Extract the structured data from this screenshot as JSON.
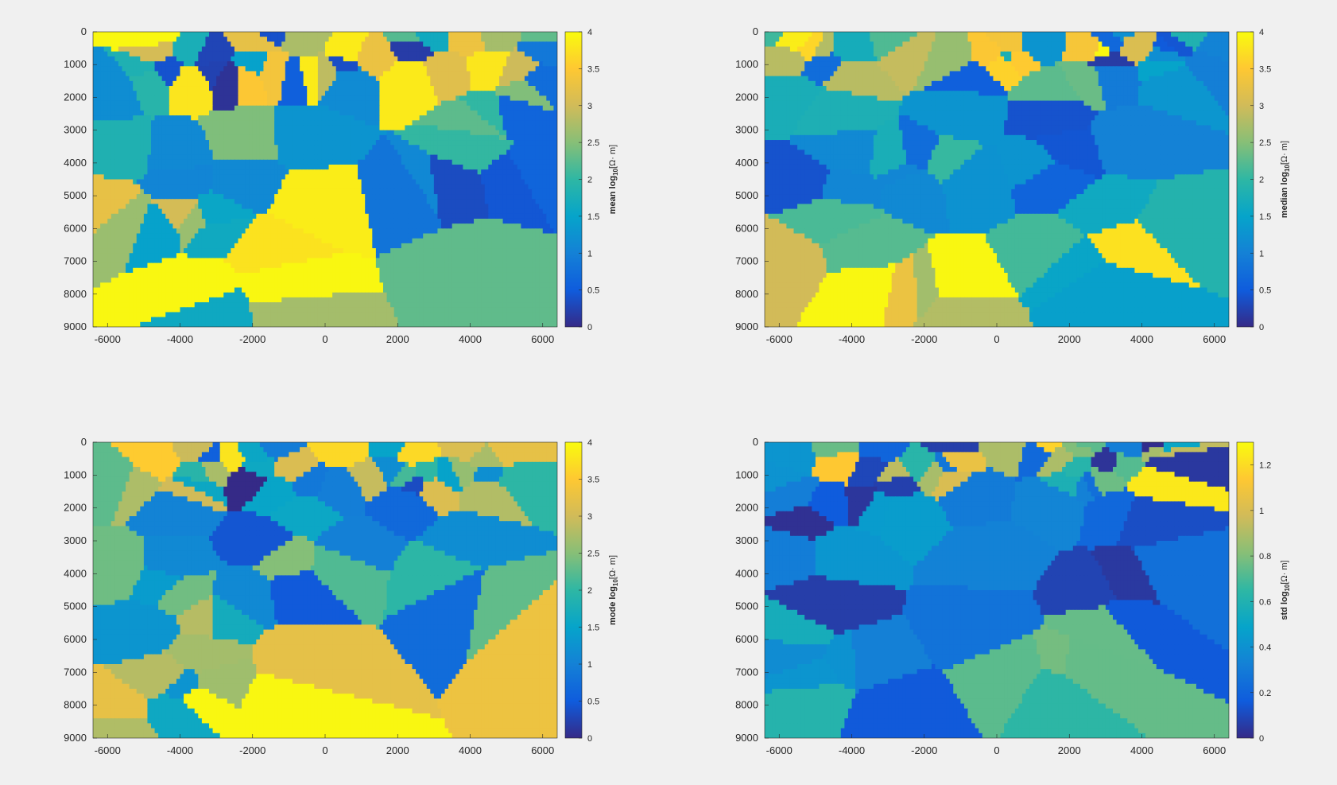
{
  "colors": {
    "background": "#f0f0f0",
    "parula": [
      "#352a87",
      "#0f5cdd",
      "#1481d6",
      "#06a4ca",
      "#2eb7a4",
      "#87bf77",
      "#d1bb59",
      "#fec832",
      "#f9fb0e"
    ]
  },
  "chart_data": [
    {
      "type": "heatmap",
      "title": "",
      "xlabel": "",
      "ylabel": "",
      "colorbar_label": "mean log",
      "colorbar_sub": "10",
      "colorbar_unit": "[Ω· m]",
      "xlim": [
        -6400,
        6400
      ],
      "ylim": [
        0,
        9000
      ],
      "y_reversed": true,
      "xticks": [
        -6000,
        -4000,
        -2000,
        0,
        2000,
        4000,
        6000
      ],
      "xtick_labels": [
        "-6000",
        "-4000",
        "-2000",
        "0",
        "2000",
        "4000",
        "6000"
      ],
      "yticks": [
        0,
        1000,
        2000,
        3000,
        4000,
        5000,
        6000,
        7000,
        8000,
        9000
      ],
      "ytick_labels": [
        "0",
        "1000",
        "2000",
        "3000",
        "4000",
        "5000",
        "6000",
        "7000",
        "8000",
        "9000"
      ],
      "clim": [
        0,
        4
      ],
      "cticks": [
        0,
        0.5,
        1,
        1.5,
        2,
        2.5,
        3,
        3.5,
        4
      ],
      "ctick_labels": [
        "0",
        "0.5",
        "1",
        "1.5",
        "2",
        "2.5",
        "3",
        "3.5",
        "4"
      ],
      "seed": 1
    },
    {
      "type": "heatmap",
      "title": "",
      "xlabel": "",
      "ylabel": "",
      "colorbar_label": "median log",
      "colorbar_sub": "10",
      "colorbar_unit": "[Ω· m]",
      "xlim": [
        -6400,
        6400
      ],
      "ylim": [
        0,
        9000
      ],
      "y_reversed": true,
      "xticks": [
        -6000,
        -4000,
        -2000,
        0,
        2000,
        4000,
        6000
      ],
      "xtick_labels": [
        "-6000",
        "-4000",
        "-2000",
        "0",
        "2000",
        "4000",
        "6000"
      ],
      "yticks": [
        0,
        1000,
        2000,
        3000,
        4000,
        5000,
        6000,
        7000,
        8000,
        9000
      ],
      "ytick_labels": [
        "0",
        "1000",
        "2000",
        "3000",
        "4000",
        "5000",
        "6000",
        "7000",
        "8000",
        "9000"
      ],
      "clim": [
        0,
        4
      ],
      "cticks": [
        0,
        0.5,
        1,
        1.5,
        2,
        2.5,
        3,
        3.5,
        4
      ],
      "ctick_labels": [
        "0",
        "0.5",
        "1",
        "1.5",
        "2",
        "2.5",
        "3",
        "3.5",
        "4"
      ],
      "seed": 2
    },
    {
      "type": "heatmap",
      "title": "",
      "xlabel": "",
      "ylabel": "",
      "colorbar_label": "mode log",
      "colorbar_sub": "10",
      "colorbar_unit": "[Ω· m]",
      "xlim": [
        -6400,
        6400
      ],
      "ylim": [
        0,
        9000
      ],
      "y_reversed": true,
      "xticks": [
        -6000,
        -4000,
        -2000,
        0,
        2000,
        4000,
        6000
      ],
      "xtick_labels": [
        "-6000",
        "-4000",
        "-2000",
        "0",
        "2000",
        "4000",
        "6000"
      ],
      "yticks": [
        0,
        1000,
        2000,
        3000,
        4000,
        5000,
        6000,
        7000,
        8000,
        9000
      ],
      "ytick_labels": [
        "0",
        "1000",
        "2000",
        "3000",
        "4000",
        "5000",
        "6000",
        "7000",
        "8000",
        "9000"
      ],
      "clim": [
        0,
        4
      ],
      "cticks": [
        0,
        0.5,
        1,
        1.5,
        2,
        2.5,
        3,
        3.5,
        4
      ],
      "ctick_labels": [
        "0",
        "0.5",
        "1",
        "1.5",
        "2",
        "2.5",
        "3",
        "3.5",
        "4"
      ],
      "seed": 3
    },
    {
      "type": "heatmap",
      "title": "",
      "xlabel": "",
      "ylabel": "",
      "colorbar_label": "std log",
      "colorbar_sub": "10",
      "colorbar_unit": "[Ω· m]",
      "xlim": [
        -6400,
        6400
      ],
      "ylim": [
        0,
        9000
      ],
      "y_reversed": true,
      "xticks": [
        -6000,
        -4000,
        -2000,
        0,
        2000,
        4000,
        6000
      ],
      "xtick_labels": [
        "-6000",
        "-4000",
        "-2000",
        "0",
        "2000",
        "4000",
        "6000"
      ],
      "yticks": [
        0,
        1000,
        2000,
        3000,
        4000,
        5000,
        6000,
        7000,
        8000,
        9000
      ],
      "ytick_labels": [
        "0",
        "1000",
        "2000",
        "3000",
        "4000",
        "5000",
        "6000",
        "7000",
        "8000",
        "9000"
      ],
      "clim": [
        0,
        1.3
      ],
      "cticks": [
        0,
        0.2,
        0.4,
        0.6,
        0.8,
        1,
        1.2
      ],
      "ctick_labels": [
        "0",
        "0.2",
        "0.4",
        "0.6",
        "0.8",
        "1",
        "1.2"
      ],
      "seed": 4
    }
  ]
}
